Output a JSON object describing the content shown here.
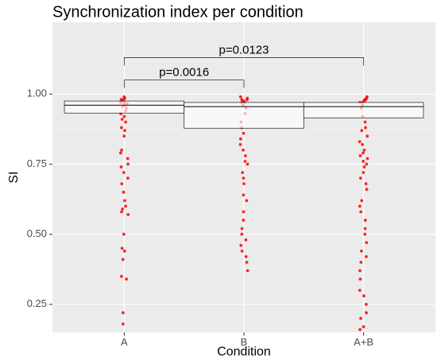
{
  "chart_data": {
    "type": "box",
    "title": "Synchronization index per condition",
    "x_label": "Condition",
    "y_label": "SI",
    "categories": [
      "A",
      "B",
      "A+B"
    ],
    "boxes": [
      {
        "q1": 0.932,
        "median": 0.96,
        "q3": 0.975
      },
      {
        "q1": 0.878,
        "median": 0.955,
        "q3": 0.97
      },
      {
        "q1": 0.915,
        "median": 0.955,
        "q3": 0.97
      }
    ],
    "points": [
      [
        0.99,
        0.985,
        0.98,
        0.98,
        0.975,
        0.97,
        0.97,
        0.965,
        0.96,
        0.96,
        0.955,
        0.95,
        0.94,
        0.93,
        0.92,
        0.91,
        0.9,
        0.88,
        0.87,
        0.85,
        0.8,
        0.79,
        0.77,
        0.75,
        0.74,
        0.72,
        0.7,
        0.68,
        0.65,
        0.62,
        0.6,
        0.59,
        0.58,
        0.57,
        0.5,
        0.45,
        0.44,
        0.41,
        0.35,
        0.34,
        0.22,
        0.18
      ],
      [
        0.99,
        0.985,
        0.98,
        0.98,
        0.975,
        0.97,
        0.97,
        0.96,
        0.95,
        0.93,
        0.9,
        0.88,
        0.86,
        0.84,
        0.82,
        0.8,
        0.78,
        0.76,
        0.75,
        0.72,
        0.7,
        0.68,
        0.64,
        0.62,
        0.58,
        0.55,
        0.52,
        0.5,
        0.48,
        0.46,
        0.44,
        0.42,
        0.4,
        0.37
      ],
      [
        0.99,
        0.985,
        0.98,
        0.98,
        0.975,
        0.97,
        0.97,
        0.96,
        0.95,
        0.92,
        0.9,
        0.88,
        0.87,
        0.85,
        0.83,
        0.82,
        0.8,
        0.79,
        0.78,
        0.77,
        0.76,
        0.75,
        0.74,
        0.72,
        0.7,
        0.68,
        0.66,
        0.62,
        0.6,
        0.58,
        0.55,
        0.52,
        0.5,
        0.47,
        0.44,
        0.42,
        0.4,
        0.37,
        0.34,
        0.3,
        0.28,
        0.25,
        0.22,
        0.2,
        0.17,
        0.16
      ]
    ],
    "point_color": "#ff0000",
    "brackets": [
      {
        "label": "p=0.0016",
        "groups": [
          "A",
          "B"
        ],
        "y": 1.05
      },
      {
        "label": "p=0.0123",
        "groups": [
          "A",
          "A+B"
        ],
        "y": 1.13
      }
    ],
    "ylim": [
      0.15,
      1.256
    ],
    "yticks": [
      {
        "value": 0.25,
        "label": "0.25"
      },
      {
        "value": 0.5,
        "label": "0.50"
      },
      {
        "value": 0.75,
        "label": "0.75"
      },
      {
        "value": 1,
        "label": "1.00"
      }
    ],
    "grid": true
  }
}
